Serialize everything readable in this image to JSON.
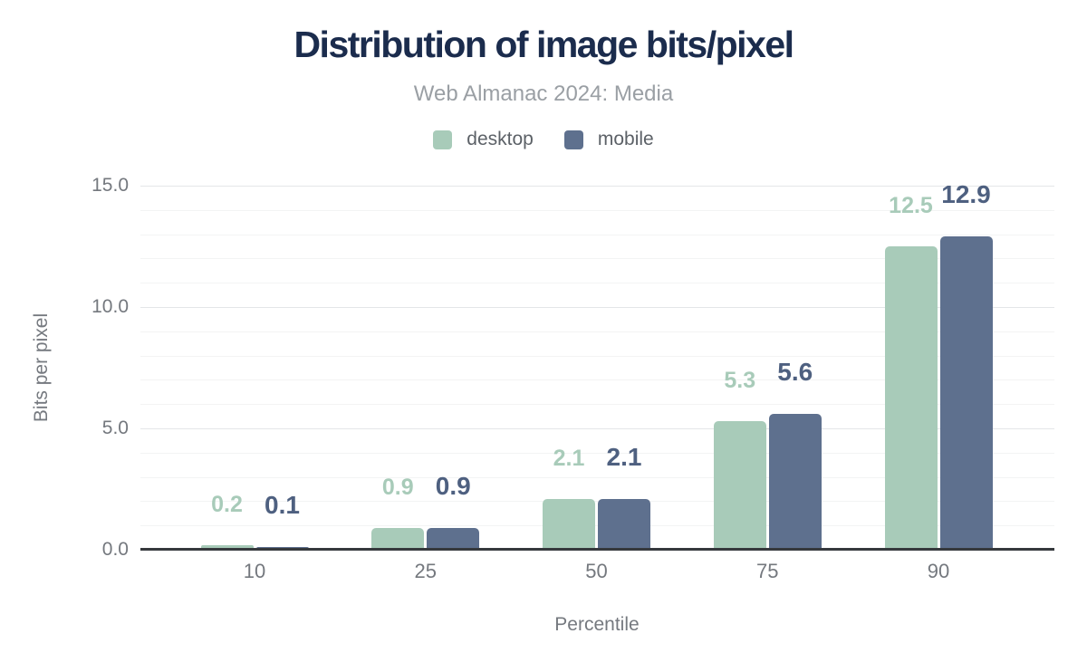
{
  "header": {
    "title": "Distribution of image bits/pixel",
    "subtitle": "Web Almanac 2024: Media"
  },
  "legend": {
    "items": [
      {
        "label": "desktop",
        "color": "#a8cbb9"
      },
      {
        "label": "mobile",
        "color": "#5e708e"
      }
    ]
  },
  "chart_data": {
    "type": "bar",
    "title": "Distribution of image bits/pixel",
    "subtitle": "Web Almanac 2024: Media",
    "categories": [
      "10",
      "25",
      "50",
      "75",
      "90"
    ],
    "series": [
      {
        "name": "desktop",
        "color": "#a8cbb9",
        "label_color": "#a8cbb9",
        "values": [
          0.2,
          0.9,
          2.1,
          5.3,
          12.5
        ],
        "value_labels": [
          "0.2",
          "0.9",
          "2.1",
          "5.3",
          "12.5"
        ]
      },
      {
        "name": "mobile",
        "color": "#5e708e",
        "label_color": "#4e6080",
        "values": [
          0.1,
          0.9,
          2.1,
          5.6,
          12.9
        ],
        "value_labels": [
          "0.1",
          "0.9",
          "2.1",
          "5.6",
          "12.9"
        ]
      }
    ],
    "xlabel": "Percentile",
    "ylabel": "Bits per pixel",
    "ylim": [
      0,
      15
    ],
    "yticks": [
      {
        "value": 0,
        "label": "0.0"
      },
      {
        "value": 5,
        "label": "5.0"
      },
      {
        "value": 10,
        "label": "10.0"
      },
      {
        "value": 15,
        "label": "15.0"
      }
    ],
    "minor_grid_step": 1,
    "grid": "horizontal",
    "legend_position": "top"
  }
}
